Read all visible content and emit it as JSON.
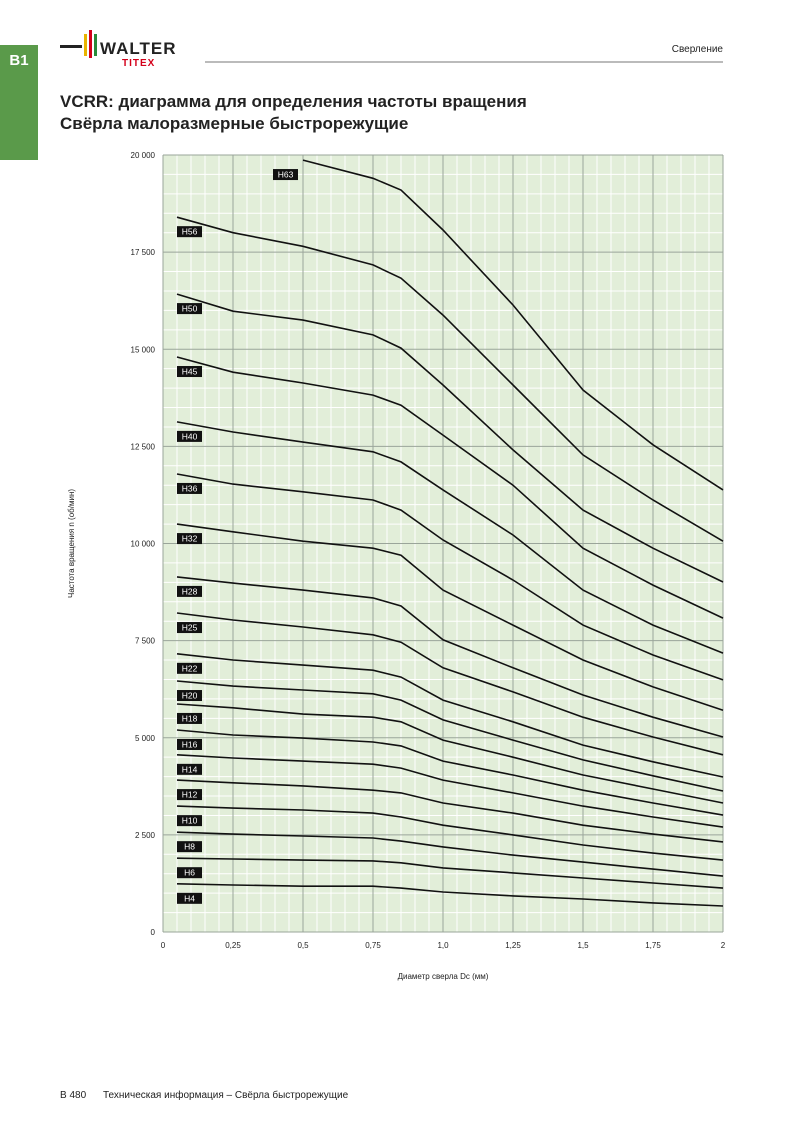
{
  "header": {
    "tab": "B1",
    "logo": "WALTER",
    "logo_sub": "TITEX",
    "section": "Сверление"
  },
  "title": [
    "VCRR: диаграмма для определения частоты вращения",
    "Свёрла малоразмерные быстрорежущие"
  ],
  "chart_data": {
    "type": "line",
    "ylabel": "Частота вращения n (об/мин)",
    "xlabel": "Диаметр сверла Dc (мм)",
    "x": [
      0.05,
      0.25,
      0.5,
      0.75,
      0.85,
      1.0,
      1.25,
      1.5,
      1.75,
      2.0
    ],
    "xlim": [
      0,
      2
    ],
    "ylim": [
      0,
      20000
    ],
    "xticks": [
      0,
      {
        "value": 0.25,
        "label": "0,25"
      },
      {
        "value": 0.5,
        "label": "0,5"
      },
      {
        "value": 0.75,
        "label": "0,75"
      },
      {
        "value": 1,
        "label": "1,0"
      },
      {
        "value": 1.25,
        "label": "1,25"
      },
      {
        "value": 1.5,
        "label": "1,5"
      },
      {
        "value": 1.75,
        "label": "1,75"
      },
      2
    ],
    "yticks": [
      0,
      {
        "value": 2500,
        "label": "2 500"
      },
      {
        "value": 5000,
        "label": "5 000"
      },
      {
        "value": 7500,
        "label": "7 500"
      },
      {
        "value": 10000,
        "label": "10 000"
      },
      {
        "value": 12500,
        "label": "12 500"
      },
      {
        "value": 15000,
        "label": "15 000"
      },
      {
        "value": 17500,
        "label": "17 500"
      },
      {
        "value": 20000,
        "label": "20 000"
      }
    ],
    "grid": true,
    "series": [
      {
        "name": "H4",
        "color": "#111111",
        "values": [
          1240,
          1210,
          1180,
          1180,
          1130,
          1030,
          930,
          850,
          750,
          670
        ]
      },
      {
        "name": "H6",
        "color": "#111111",
        "values": [
          1900,
          1880,
          1850,
          1830,
          1780,
          1650,
          1520,
          1390,
          1260,
          1130
        ]
      },
      {
        "name": "H8",
        "color": "#111111",
        "values": [
          2570,
          2520,
          2470,
          2420,
          2340,
          2190,
          1980,
          1800,
          1620,
          1440
        ]
      },
      {
        "name": "H10",
        "color": "#111111",
        "values": [
          3240,
          3190,
          3140,
          3060,
          2960,
          2750,
          2500,
          2240,
          2030,
          1850
        ]
      },
      {
        "name": "H12",
        "color": "#111111",
        "values": [
          3910,
          3840,
          3760,
          3650,
          3580,
          3320,
          3060,
          2750,
          2520,
          2320
        ]
      },
      {
        "name": "H14",
        "color": "#111111",
        "values": [
          4560,
          4480,
          4400,
          4320,
          4220,
          3910,
          3580,
          3240,
          2960,
          2700
        ]
      },
      {
        "name": "H16",
        "color": "#111111",
        "values": [
          5200,
          5070,
          4990,
          4890,
          4790,
          4400,
          4040,
          3650,
          3320,
          3010
        ]
      },
      {
        "name": "H18",
        "color": "#111111",
        "values": [
          5870,
          5770,
          5610,
          5530,
          5410,
          4940,
          4500,
          4040,
          3680,
          3320
        ]
      },
      {
        "name": "H20",
        "color": "#111111",
        "values": [
          6460,
          6330,
          6230,
          6130,
          5970,
          5460,
          4940,
          4430,
          4020,
          3630
        ]
      },
      {
        "name": "H22",
        "color": "#111111",
        "values": [
          7160,
          7000,
          6870,
          6740,
          6560,
          5970,
          5410,
          4810,
          4380,
          3990
        ]
      },
      {
        "name": "H25",
        "color": "#111111",
        "values": [
          8210,
          8030,
          7850,
          7650,
          7460,
          6800,
          6180,
          5530,
          5020,
          4560
        ]
      },
      {
        "name": "H28",
        "color": "#111111",
        "values": [
          9140,
          8980,
          8800,
          8600,
          8390,
          7520,
          6800,
          6100,
          5530,
          5020
        ]
      },
      {
        "name": "H32",
        "color": "#111111",
        "values": [
          10500,
          10300,
          10060,
          9880,
          9700,
          8800,
          7900,
          7000,
          6310,
          5710
        ]
      },
      {
        "name": "H36",
        "color": "#111111",
        "values": [
          11790,
          11530,
          11330,
          11120,
          10860,
          10090,
          9060,
          7900,
          7130,
          6490
        ]
      },
      {
        "name": "H40",
        "color": "#111111",
        "values": [
          13130,
          12870,
          12610,
          12360,
          12100,
          11380,
          10220,
          8800,
          7900,
          7180
        ]
      },
      {
        "name": "H45",
        "color": "#111111",
        "values": [
          14800,
          14410,
          14130,
          13820,
          13560,
          12790,
          11500,
          9880,
          8930,
          8080
        ]
      },
      {
        "name": "H50",
        "color": "#111111",
        "values": [
          16420,
          15980,
          15750,
          15370,
          15030,
          14080,
          12410,
          10860,
          9880,
          9010
        ]
      },
      {
        "name": "H56",
        "color": "#111111",
        "values": [
          18400,
          18000,
          17650,
          17170,
          16830,
          15880,
          14080,
          12280,
          11120,
          10060
        ]
      },
      {
        "name": "H63",
        "color": "#111111",
        "values": [
          null,
          null,
          19870,
          19400,
          19100,
          18070,
          16140,
          13950,
          12540,
          11380
        ]
      }
    ]
  },
  "footer": {
    "page": "B 480",
    "text": "Техническая информация – Свёрла быстрорежущие"
  }
}
